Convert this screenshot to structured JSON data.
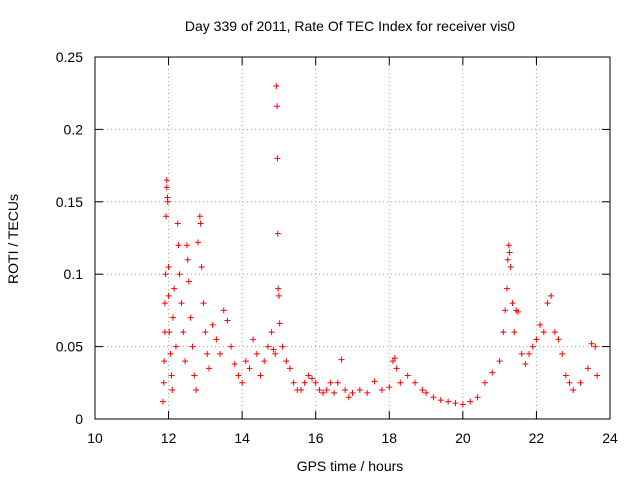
{
  "chart_data": {
    "type": "scatter",
    "title": "Day 339 of 2011, Rate Of TEC Index for receiver vis0",
    "xlabel": "GPS time / hours",
    "ylabel": "ROTI / TECUs",
    "xlim": [
      10,
      24
    ],
    "ylim": [
      0,
      0.25
    ],
    "x_ticks": [
      10,
      12,
      14,
      16,
      18,
      20,
      22,
      24
    ],
    "x_tick_labels": [
      "10",
      "12",
      "14",
      "16",
      "18",
      "20",
      "22",
      "24"
    ],
    "y_ticks": [
      0,
      0.05,
      0.1,
      0.15,
      0.2,
      0.25
    ],
    "y_tick_labels": [
      "0",
      "0.05",
      "0.1",
      "0.15",
      "0.2",
      "0.25"
    ],
    "grid": true,
    "legend": "none",
    "marker": "plus",
    "color": "#ff0000",
    "series": [
      {
        "points": [
          [
            11.85,
            0.012
          ],
          [
            11.87,
            0.025
          ],
          [
            11.88,
            0.04
          ],
          [
            11.9,
            0.06
          ],
          [
            11.9,
            0.08
          ],
          [
            11.92,
            0.1
          ],
          [
            11.93,
            0.14
          ],
          [
            11.95,
            0.165
          ],
          [
            11.95,
            0.16
          ],
          [
            11.97,
            0.153
          ],
          [
            11.98,
            0.15
          ],
          [
            12.0,
            0.105
          ],
          [
            12.0,
            0.085
          ],
          [
            12.02,
            0.06
          ],
          [
            12.05,
            0.045
          ],
          [
            12.08,
            0.03
          ],
          [
            12.1,
            0.02
          ],
          [
            12.12,
            0.07
          ],
          [
            12.15,
            0.09
          ],
          [
            12.2,
            0.05
          ],
          [
            12.25,
            0.135
          ],
          [
            12.27,
            0.12
          ],
          [
            12.3,
            0.1
          ],
          [
            12.35,
            0.08
          ],
          [
            12.4,
            0.06
          ],
          [
            12.45,
            0.04
          ],
          [
            12.5,
            0.12
          ],
          [
            12.52,
            0.11
          ],
          [
            12.55,
            0.095
          ],
          [
            12.6,
            0.07
          ],
          [
            12.65,
            0.05
          ],
          [
            12.7,
            0.03
          ],
          [
            12.75,
            0.02
          ],
          [
            12.8,
            0.122
          ],
          [
            12.85,
            0.14
          ],
          [
            12.87,
            0.135
          ],
          [
            12.9,
            0.105
          ],
          [
            12.95,
            0.08
          ],
          [
            13.0,
            0.06
          ],
          [
            13.05,
            0.045
          ],
          [
            13.1,
            0.035
          ],
          [
            13.2,
            0.065
          ],
          [
            13.3,
            0.055
          ],
          [
            13.4,
            0.045
          ],
          [
            13.5,
            0.075
          ],
          [
            13.6,
            0.068
          ],
          [
            13.7,
            0.05
          ],
          [
            13.8,
            0.038
          ],
          [
            13.9,
            0.03
          ],
          [
            14.0,
            0.025
          ],
          [
            14.1,
            0.04
          ],
          [
            14.2,
            0.035
          ],
          [
            14.3,
            0.055
          ],
          [
            14.4,
            0.045
          ],
          [
            14.5,
            0.03
          ],
          [
            14.6,
            0.04
          ],
          [
            14.7,
            0.05
          ],
          [
            14.8,
            0.06
          ],
          [
            14.85,
            0.048
          ],
          [
            14.9,
            0.045
          ],
          [
            14.93,
            0.23
          ],
          [
            14.95,
            0.216
          ],
          [
            14.96,
            0.18
          ],
          [
            14.97,
            0.128
          ],
          [
            14.98,
            0.09
          ],
          [
            15.0,
            0.085
          ],
          [
            15.02,
            0.066
          ],
          [
            15.1,
            0.05
          ],
          [
            15.2,
            0.04
          ],
          [
            15.3,
            0.035
          ],
          [
            15.4,
            0.025
          ],
          [
            15.5,
            0.02
          ],
          [
            15.6,
            0.02
          ],
          [
            15.7,
            0.025
          ],
          [
            15.8,
            0.03
          ],
          [
            15.9,
            0.028
          ],
          [
            16.0,
            0.025
          ],
          [
            16.1,
            0.02
          ],
          [
            16.2,
            0.018
          ],
          [
            16.3,
            0.02
          ],
          [
            16.4,
            0.025
          ],
          [
            16.5,
            0.018
          ],
          [
            16.6,
            0.025
          ],
          [
            16.7,
            0.041
          ],
          [
            16.8,
            0.02
          ],
          [
            16.9,
            0.015
          ],
          [
            17.0,
            0.018
          ],
          [
            17.2,
            0.02
          ],
          [
            17.4,
            0.018
          ],
          [
            17.6,
            0.026
          ],
          [
            17.8,
            0.02
          ],
          [
            18.0,
            0.022
          ],
          [
            18.1,
            0.04
          ],
          [
            18.15,
            0.042
          ],
          [
            18.2,
            0.035
          ],
          [
            18.3,
            0.025
          ],
          [
            18.5,
            0.03
          ],
          [
            18.7,
            0.025
          ],
          [
            18.9,
            0.02
          ],
          [
            19.0,
            0.018
          ],
          [
            19.2,
            0.015
          ],
          [
            19.4,
            0.013
          ],
          [
            19.6,
            0.012
          ],
          [
            19.8,
            0.011
          ],
          [
            20.0,
            0.01
          ],
          [
            20.2,
            0.012
          ],
          [
            20.4,
            0.015
          ],
          [
            20.6,
            0.025
          ],
          [
            20.8,
            0.032
          ],
          [
            21.0,
            0.04
          ],
          [
            21.1,
            0.06
          ],
          [
            21.15,
            0.075
          ],
          [
            21.2,
            0.09
          ],
          [
            21.22,
            0.11
          ],
          [
            21.25,
            0.12
          ],
          [
            21.27,
            0.115
          ],
          [
            21.3,
            0.105
          ],
          [
            21.35,
            0.08
          ],
          [
            21.4,
            0.06
          ],
          [
            21.45,
            0.075
          ],
          [
            21.5,
            0.074
          ],
          [
            21.6,
            0.045
          ],
          [
            21.7,
            0.038
          ],
          [
            21.8,
            0.045
          ],
          [
            21.9,
            0.05
          ],
          [
            22.0,
            0.055
          ],
          [
            22.1,
            0.065
          ],
          [
            22.2,
            0.06
          ],
          [
            22.3,
            0.08
          ],
          [
            22.4,
            0.085
          ],
          [
            22.5,
            0.06
          ],
          [
            22.6,
            0.055
          ],
          [
            22.7,
            0.045
          ],
          [
            22.8,
            0.03
          ],
          [
            22.9,
            0.025
          ],
          [
            23.0,
            0.02
          ],
          [
            23.2,
            0.025
          ],
          [
            23.4,
            0.035
          ],
          [
            23.5,
            0.052
          ],
          [
            23.6,
            0.05
          ],
          [
            23.65,
            0.03
          ]
        ]
      }
    ]
  }
}
